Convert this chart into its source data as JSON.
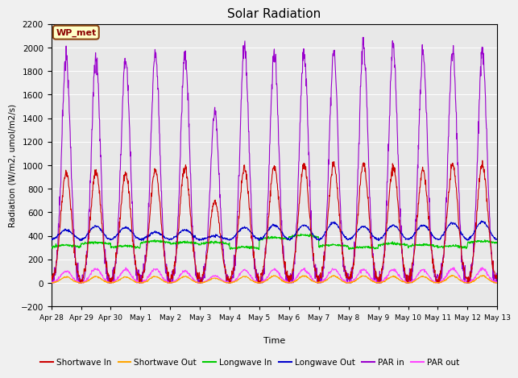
{
  "title": "Solar Radiation",
  "ylabel": "Radiation (W/m2, umol/m2/s)",
  "xlabel": "Time",
  "ylim": [
    -200,
    2200
  ],
  "yticks": [
    -200,
    0,
    200,
    400,
    600,
    800,
    1000,
    1200,
    1400,
    1600,
    1800,
    2000,
    2200
  ],
  "background_color": "#e8e8e8",
  "fig_background_color": "#f0f0f0",
  "legend_label": "WP_met",
  "legend_box_color": "#ffffc8",
  "legend_box_border": "#8b4513",
  "series": {
    "shortwave_in": {
      "color": "#cc0000",
      "label": "Shortwave In"
    },
    "shortwave_out": {
      "color": "#ffa500",
      "label": "Shortwave Out"
    },
    "longwave_in": {
      "color": "#00cc00",
      "label": "Longwave In"
    },
    "longwave_out": {
      "color": "#0000cc",
      "label": "Longwave Out"
    },
    "par_in": {
      "color": "#9900cc",
      "label": "PAR in"
    },
    "par_out": {
      "color": "#ff44ff",
      "label": "PAR out"
    }
  },
  "n_days": 15,
  "shortwave_in_peaks": [
    940,
    950,
    930,
    960,
    980,
    700,
    970,
    990,
    1000,
    1000,
    1000,
    980,
    960,
    1000,
    1000
  ],
  "shortwave_out_peaks": [
    50,
    55,
    50,
    55,
    55,
    40,
    55,
    60,
    60,
    60,
    60,
    55,
    55,
    60,
    60
  ],
  "longwave_in_variation": [
    305,
    330,
    300,
    340,
    330,
    330,
    290,
    370,
    390,
    310,
    290,
    320,
    310,
    300,
    340
  ],
  "longwave_out_baseline": 370,
  "longwave_out_peaks": [
    450,
    480,
    470,
    430,
    450,
    400,
    470,
    490,
    490,
    510,
    480,
    490,
    490,
    510,
    520
  ],
  "par_in_peaks": [
    1910,
    1920,
    1910,
    1960,
    1940,
    1450,
    2010,
    1960,
    1950,
    1960,
    2020,
    2000,
    1940,
    1960,
    1980
  ],
  "par_out_peaks": [
    100,
    120,
    115,
    120,
    100,
    60,
    110,
    115,
    115,
    120,
    115,
    110,
    110,
    120,
    120
  ],
  "tick_labels": [
    "Apr 28",
    "Apr 29",
    "Apr 30",
    "May 1",
    "May 2",
    "May 3",
    "May 4",
    "May 5",
    "May 6",
    "May 7",
    "May 8",
    "May 9",
    "May 10",
    "May 11",
    "May 12",
    "May 13"
  ]
}
